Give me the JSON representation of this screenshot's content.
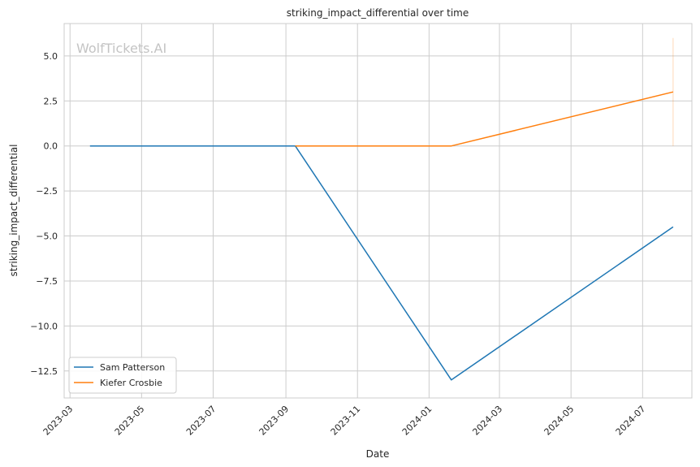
{
  "chart_data": {
    "type": "line",
    "title": "striking_impact_differential over time",
    "xlabel": "Date",
    "ylabel": "striking_impact_differential",
    "watermark": "WolfTickets.AI",
    "xlim": [
      "2023-02-24",
      "2024-08-12"
    ],
    "ylim": [
      -14.0,
      6.8
    ],
    "x_ticks": [
      "2023-03",
      "2023-05",
      "2023-07",
      "2023-09",
      "2023-11",
      "2024-01",
      "2024-03",
      "2024-05",
      "2024-07"
    ],
    "y_ticks": [
      5.0,
      2.5,
      0.0,
      -2.5,
      -5.0,
      -7.5,
      -10.0,
      -12.5
    ],
    "y_tick_labels": [
      "5.0",
      "2.5",
      "0.0",
      "−2.5",
      "−5.0",
      "−7.5",
      "−10.0",
      "−12.5"
    ],
    "grid": true,
    "legend_position": "lower-left",
    "series": [
      {
        "name": "Sam Patterson",
        "color": "#1f77b4",
        "points": [
          {
            "x": "2023-03-18",
            "y": 0.0
          },
          {
            "x": "2023-09-09",
            "y": 0.0
          },
          {
            "x": "2024-01-20",
            "y": -13.0
          },
          {
            "x": "2024-07-27",
            "y": -4.5
          }
        ]
      },
      {
        "name": "Kiefer Crosbie",
        "color": "#ff7f0e",
        "points": [
          {
            "x": "2023-09-09",
            "y": 0.0
          },
          {
            "x": "2024-01-20",
            "y": 0.0
          },
          {
            "x": "2024-07-27",
            "y": 3.0
          }
        ]
      }
    ],
    "annotations": [
      {
        "type": "vertical-segment",
        "x": "2024-07-27",
        "y_from": 0.0,
        "y_to": 6.0,
        "color": "#ff7f0e"
      }
    ]
  }
}
